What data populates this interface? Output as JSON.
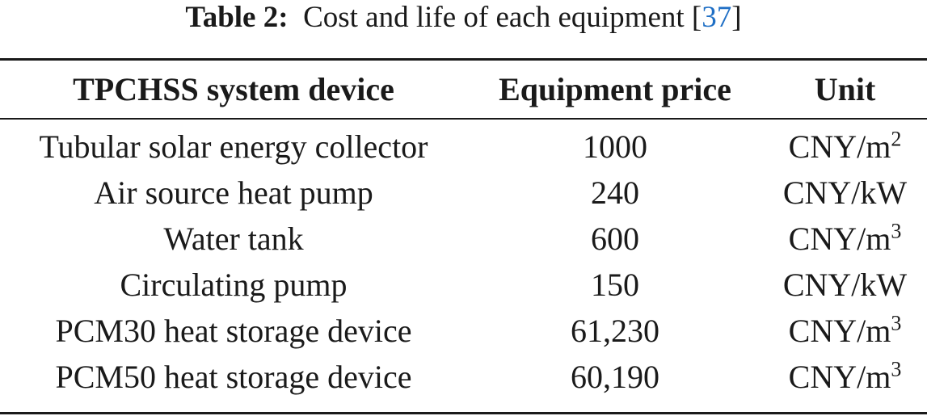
{
  "caption": {
    "label": "Table 2:",
    "text": "Cost and life of each equipment",
    "citation": "37"
  },
  "table": {
    "headers": [
      "TPCHSS system device",
      "Equipment price",
      "Unit"
    ],
    "rows": [
      {
        "device": "Tubular solar energy collector",
        "price": "1000",
        "unit": "CNY/m",
        "unit_exp": "2"
      },
      {
        "device": "Air source heat pump",
        "price": "240",
        "unit": "CNY/kW",
        "unit_exp": ""
      },
      {
        "device": "Water tank",
        "price": "600",
        "unit": "CNY/m",
        "unit_exp": "3"
      },
      {
        "device": "Circulating pump",
        "price": "150",
        "unit": "CNY/kW",
        "unit_exp": ""
      },
      {
        "device": "PCM30 heat storage device",
        "price": "61,230",
        "unit": "CNY/m",
        "unit_exp": "3"
      },
      {
        "device": "PCM50 heat storage device",
        "price": "60,190",
        "unit": "CNY/m",
        "unit_exp": "3"
      }
    ]
  }
}
